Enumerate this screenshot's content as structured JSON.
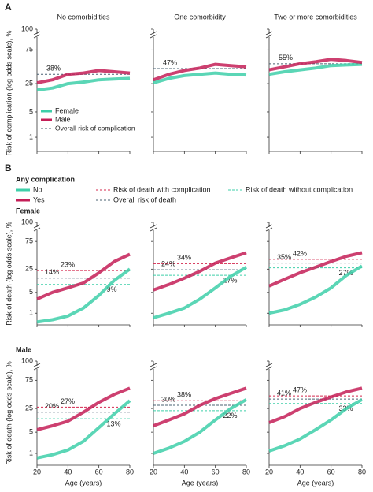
{
  "chart_data": [
    {
      "type": "line",
      "panel_label": "A",
      "ylabel": "Risk of complication (log odds scale), %",
      "y_scale": "logit",
      "ylim": [
        0.4,
        85
      ],
      "yticks": [
        1,
        5,
        25,
        75,
        100
      ],
      "xlim": [
        20,
        80
      ],
      "xticks": [
        20,
        40,
        60,
        80
      ],
      "x": [
        20,
        30,
        40,
        50,
        60,
        70,
        80
      ],
      "series_styles": [
        {
          "name": "Female",
          "color": "#3ecfa9"
        },
        {
          "name": "Male",
          "color": "#c41e57"
        }
      ],
      "reference_styles": [
        {
          "name": "Overall risk of complication",
          "color": "#4a6072"
        }
      ],
      "panels": [
        {
          "title": "No comorbidities",
          "series": [
            [
              18,
              20,
              25,
              27,
              30,
              31,
              32
            ],
            [
              26,
              30,
              38,
              40,
              44,
              42,
              40
            ]
          ],
          "references": [
            {
              "value": 38,
              "value_label": "38%"
            }
          ]
        },
        {
          "title": "One comorbidity",
          "series": [
            [
              26,
              32,
              36,
              38,
              40,
              38,
              37
            ],
            [
              30,
              38,
              44,
              48,
              54,
              52,
              50
            ]
          ],
          "references": [
            {
              "value": 47,
              "value_label": "47%"
            }
          ]
        },
        {
          "title": "Two or more comorbidities",
          "series": [
            [
              38,
              42,
              45,
              48,
              52,
              53,
              54
            ],
            [
              45,
              50,
              55,
              58,
              62,
              60,
              57
            ]
          ],
          "references": [
            {
              "value": 55,
              "value_label": "55%"
            }
          ]
        }
      ]
    },
    {
      "type": "line",
      "panel_label": "B",
      "legend_title": "Any complication",
      "ylabel": "Risk of death (log odds scale), %",
      "xlabel": "Age (years)",
      "y_scale": "logit",
      "ylim": [
        0.4,
        85
      ],
      "yticks": [
        1,
        5,
        25,
        75,
        100
      ],
      "xlim": [
        20,
        80
      ],
      "xticks": [
        20,
        40,
        60,
        80
      ],
      "x": [
        20,
        30,
        40,
        50,
        60,
        70,
        80
      ],
      "series_styles": [
        {
          "name": "No",
          "color": "#3ecfa9"
        },
        {
          "name": "Yes",
          "color": "#c41e57"
        }
      ],
      "reference_styles": [
        {
          "name": "Risk of death with complication",
          "color": "#d4284e"
        },
        {
          "name": "Risk of death without complication",
          "color": "#3ecfa9"
        },
        {
          "name": "Overall risk of death",
          "color": "#4a6072"
        }
      ],
      "rows": [
        {
          "title": "Female",
          "panels": [
            {
              "series": [
                [
                  0.5,
                  0.6,
                  0.8,
                  1.5,
                  4,
                  12,
                  25
                ],
                [
                  3,
                  5,
                  7,
                  10,
                  20,
                  38,
                  52
                ]
              ],
              "references": [
                {
                  "value": 23,
                  "value_label": "23%"
                },
                {
                  "value": 9,
                  "value_label": "9%"
                },
                {
                  "value": 14,
                  "value_label": "14%"
                }
              ]
            },
            {
              "series": [
                [
                  0.7,
                  1,
                  1.5,
                  3,
                  7,
                  16,
                  28
                ],
                [
                  6,
                  9,
                  14,
                  22,
                  35,
                  45,
                  55
                ]
              ],
              "references": [
                {
                  "value": 34,
                  "value_label": "34%"
                },
                {
                  "value": 17,
                  "value_label": "17%"
                },
                {
                  "value": 24,
                  "value_label": "24%"
                }
              ]
            },
            {
              "series": [
                [
                  1,
                  1.3,
                  2,
                  3.5,
                  7,
                  17,
                  30
                ],
                [
                  8,
                  13,
                  20,
                  28,
                  38,
                  48,
                  55
                ]
              ],
              "references": [
                {
                  "value": 42,
                  "value_label": "42%"
                },
                {
                  "value": 27,
                  "value_label": "27%"
                },
                {
                  "value": 35,
                  "value_label": "35%"
                }
              ]
            }
          ]
        },
        {
          "title": "Male",
          "panels": [
            {
              "series": [
                [
                  0.7,
                  0.9,
                  1.3,
                  2.5,
                  7,
                  18,
                  38
                ],
                [
                  6,
                  8,
                  11,
                  20,
                  35,
                  50,
                  62
                ]
              ],
              "references": [
                {
                  "value": 27,
                  "value_label": "27%"
                },
                {
                  "value": 13,
                  "value_label": "13%"
                },
                {
                  "value": 20,
                  "value_label": "20%"
                }
              ]
            },
            {
              "series": [
                [
                  1,
                  1.5,
                  2.5,
                  5,
                  12,
                  25,
                  40
                ],
                [
                  8,
                  12,
                  18,
                  30,
                  42,
                  52,
                  62
                ]
              ],
              "references": [
                {
                  "value": 38,
                  "value_label": "38%"
                },
                {
                  "value": 22,
                  "value_label": "22%"
                },
                {
                  "value": 30,
                  "value_label": "30%"
                }
              ]
            },
            {
              "series": [
                [
                  1.2,
                  1.8,
                  3,
                  6,
                  12,
                  25,
                  40
                ],
                [
                  10,
                  15,
                  25,
                  35,
                  45,
                  55,
                  62
                ]
              ],
              "references": [
                {
                  "value": 47,
                  "value_label": "47%"
                },
                {
                  "value": 33,
                  "value_label": "33%"
                },
                {
                  "value": 41,
                  "value_label": "41%"
                }
              ]
            }
          ]
        }
      ]
    }
  ]
}
